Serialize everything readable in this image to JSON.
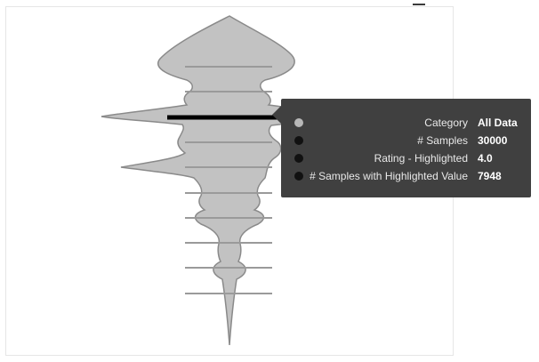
{
  "colors": {
    "violin_fill": "#c2c2c2",
    "violin_stroke": "#8a8a8a",
    "highlight_line": "#000000",
    "quartile_lines": "#9a9a9a",
    "tooltip_bg": "#404040"
  },
  "tooltip": {
    "rows": [
      {
        "label": "Category",
        "value": "All Data",
        "dot_color": "light"
      },
      {
        "label": "# Samples",
        "value": "30000",
        "dot_color": "dark"
      },
      {
        "label": "Rating - Highlighted",
        "value": "4.0",
        "dot_color": "dark"
      },
      {
        "label": "# Samples with Highlighted Value",
        "value": "7948",
        "dot_color": "dark"
      }
    ]
  }
}
